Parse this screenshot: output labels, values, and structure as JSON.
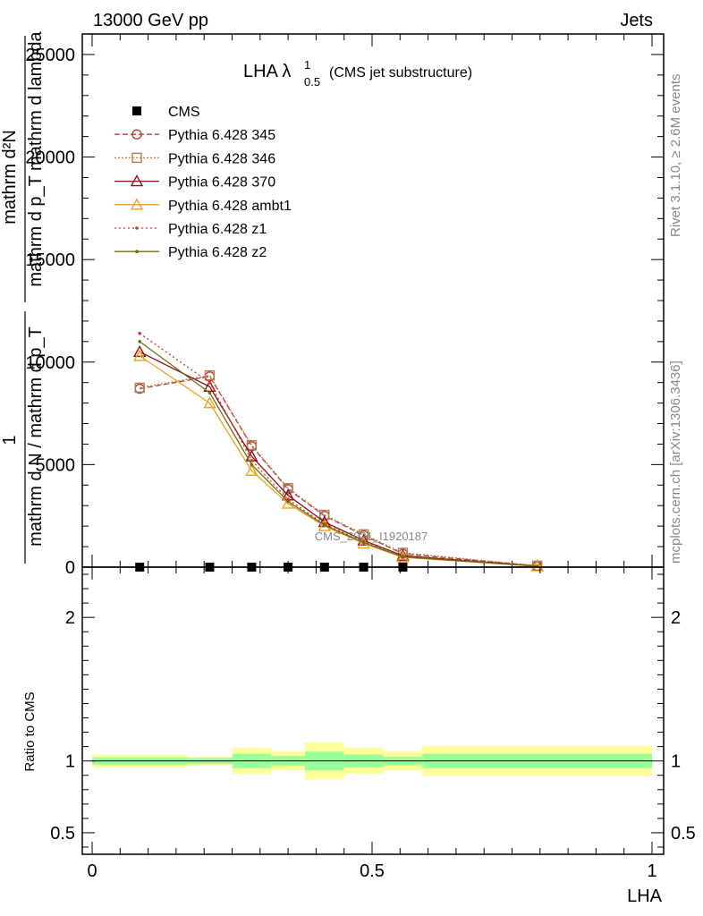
{
  "header": {
    "left_text": "13000 GeV pp",
    "right_text": "Jets"
  },
  "side_labels": {
    "rivet": "Rivet 3.1.10, ≥ 2.6M events",
    "mcplots": "mcplots.cern.ch [arXiv:1306.3436]"
  },
  "watermark": "CMS_2021_I1920187",
  "chart_data": {
    "type": "line",
    "title": {
      "main": "LHA λ",
      "superscript": "1",
      "subscript": "0.5",
      "suffix": "(CMS jet substructure)"
    },
    "ylabel": {
      "line1": "mathrm d²N",
      "line2": "mathrm d p_T mathrm d lambda",
      "numerator": "1",
      "denominator": "mathrm d N / mathrm d p_T"
    },
    "xlabel": "LHA",
    "xlim": [
      0,
      1
    ],
    "ylim": [
      0,
      26000
    ],
    "x_ticks": [
      {
        "value": 0,
        "label": "0"
      },
      {
        "value": 0.5,
        "label": "0.5"
      },
      {
        "value": 1,
        "label": "1"
      }
    ],
    "y_ticks": [
      {
        "value": 0,
        "label": "0"
      },
      {
        "value": 5000,
        "label": "5000"
      },
      {
        "value": 10000,
        "label": "10000"
      },
      {
        "value": 15000,
        "label": "15000"
      },
      {
        "value": 20000,
        "label": "20000"
      },
      {
        "value": 25000,
        "label": "25000"
      }
    ],
    "x": [
      0.085,
      0.21,
      0.285,
      0.35,
      0.415,
      0.485,
      0.555,
      0.795
    ],
    "series": [
      {
        "name": "CMS",
        "color": "#000000",
        "dash": "",
        "marker": "square",
        "values": [
          0,
          0,
          0,
          0,
          0,
          0,
          0,
          null
        ]
      },
      {
        "name": "Pythia 6.428 345",
        "color": "#b8403e",
        "dash": "6,3",
        "marker": "circle",
        "values": [
          8700,
          9300,
          5900,
          3800,
          2500,
          1550,
          650,
          60
        ]
      },
      {
        "name": "Pythia 6.428 346",
        "color": "#a8824e",
        "dash": "2,2",
        "marker": "square-open",
        "values": [
          8750,
          9350,
          5950,
          3850,
          2550,
          1600,
          700,
          70
        ]
      },
      {
        "name": "Pythia 6.428 370",
        "color": "#8b0d1e",
        "dash": "",
        "marker": "triangle",
        "values": [
          10500,
          8800,
          5400,
          3500,
          2200,
          1300,
          560,
          50
        ]
      },
      {
        "name": "Pythia 6.428 ambt1",
        "color": "#eea219",
        "dash": "",
        "marker": "triangle",
        "values": [
          10300,
          8000,
          4700,
          3100,
          2000,
          1150,
          480,
          40
        ]
      },
      {
        "name": "Pythia 6.428 z1",
        "color": "#d23a26",
        "dash": "2,3",
        "marker": "dot",
        "values": [
          11400,
          9000,
          5200,
          3300,
          2100,
          1250,
          530,
          45
        ]
      },
      {
        "name": "Pythia 6.428 z2",
        "color": "#6e6b10",
        "dash": "",
        "marker": "dot",
        "values": [
          11000,
          8500,
          5000,
          3200,
          2050,
          1200,
          500,
          42
        ]
      }
    ],
    "ratio": {
      "ylabel": "Ratio to CMS",
      "ylim": [
        0.35,
        2.35
      ],
      "y_ticks": [
        {
          "value": 0.5,
          "label": "0.5"
        },
        {
          "value": 1,
          "label": "1"
        },
        {
          "value": 2,
          "label": "2"
        }
      ],
      "bins": [
        {
          "x0": 0.0,
          "x1": 0.17,
          "stat": 0.025,
          "total": 0.045
        },
        {
          "x0": 0.17,
          "x1": 0.25,
          "stat": 0.02,
          "total": 0.03
        },
        {
          "x0": 0.25,
          "x1": 0.32,
          "stat": 0.05,
          "total": 0.09
        },
        {
          "x0": 0.32,
          "x1": 0.38,
          "stat": 0.035,
          "total": 0.065
        },
        {
          "x0": 0.38,
          "x1": 0.45,
          "stat": 0.065,
          "total": 0.13
        },
        {
          "x0": 0.45,
          "x1": 0.52,
          "stat": 0.045,
          "total": 0.09
        },
        {
          "x0": 0.52,
          "x1": 0.59,
          "stat": 0.03,
          "total": 0.065
        },
        {
          "x0": 0.59,
          "x1": 1.0,
          "stat": 0.05,
          "total": 0.105
        }
      ]
    }
  }
}
